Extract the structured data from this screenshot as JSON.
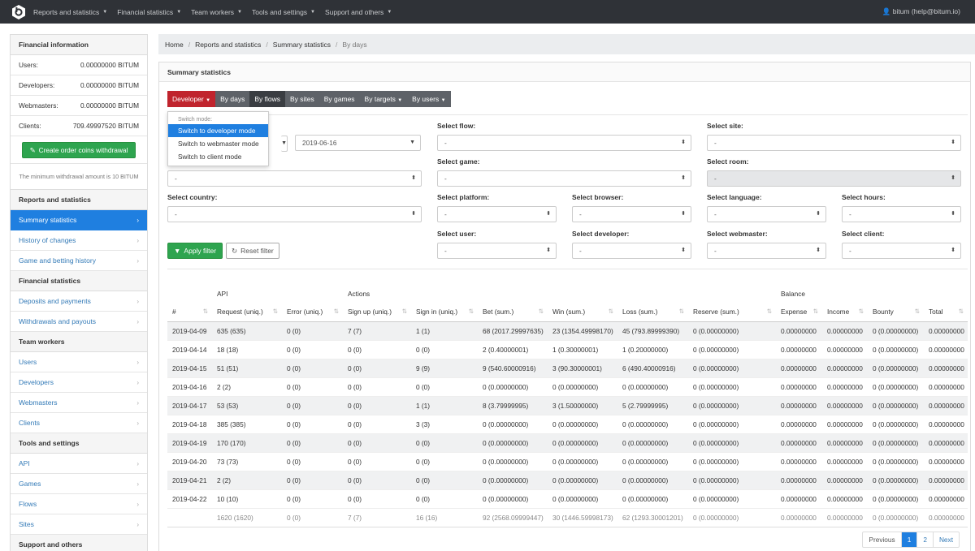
{
  "nav": {
    "items": [
      "Reports and statistics",
      "Financial statistics",
      "Team workers",
      "Tools and settings",
      "Support and others"
    ],
    "user": "bitum (help@bitum.io)"
  },
  "sidebar": {
    "fin_title": "Financial information",
    "balances": [
      {
        "label": "Users:",
        "value": "0.00000000 BITUM"
      },
      {
        "label": "Developers:",
        "value": "0.00000000 BITUM"
      },
      {
        "label": "Webmasters:",
        "value": "0.00000000 BITUM"
      },
      {
        "label": "Clients:",
        "value": "709.49997520 BITUM"
      }
    ],
    "withdraw_button": "Create order coins withdrawal",
    "min_note": "The minimum withdrawal amount is 10 BITUM",
    "sections": [
      {
        "title": "Reports and statistics",
        "links": [
          "Summary statistics",
          "History of changes",
          "Game and betting history"
        ]
      },
      {
        "title": "Financial statistics",
        "links": [
          "Deposits and payments",
          "Withdrawals and payouts"
        ]
      },
      {
        "title": "Team workers",
        "links": [
          "Users",
          "Developers",
          "Webmasters",
          "Clients"
        ]
      },
      {
        "title": "Tools and settings",
        "links": [
          "API",
          "Games",
          "Flows",
          "Sites"
        ]
      },
      {
        "title": "Support and others",
        "links": []
      }
    ],
    "active_link": "Summary statistics"
  },
  "breadcrumb": [
    "Home",
    "Reports and statistics",
    "Summary statistics",
    "By days"
  ],
  "panel_title": "Summary statistics",
  "tabs": {
    "mode": "Developer",
    "items": [
      "By days",
      "By flows",
      "By sites",
      "By games",
      "By targets",
      "By users"
    ],
    "active": "By days"
  },
  "dropdown": {
    "header": "Switch mode:",
    "items": [
      "Switch to developer mode",
      "Switch to webmaster mode",
      "Switch to client mode"
    ]
  },
  "filters": {
    "date_to": "2019-06-16",
    "labels": {
      "flow": "Select flow:",
      "site": "Select site:",
      "game": "Select game:",
      "room": "Select room:",
      "country": "Select country:",
      "platform": "Select platform:",
      "browser": "Select browser:",
      "language": "Select language:",
      "hours": "Select hours:",
      "user": "Select user:",
      "developer": "Select developer:",
      "webmaster": "Select webmaster:",
      "client": "Select client:"
    },
    "empty": "-"
  },
  "apply_button": "Apply filter",
  "reset_button": "Reset filter",
  "table": {
    "groups": {
      "api": "API",
      "actions": "Actions",
      "balance": "Balance"
    },
    "columns": [
      "#",
      "Request (uniq.)",
      "Error (uniq.)",
      "Sign up (uniq.)",
      "Sign in (uniq.)",
      "Bet (sum.)",
      "Win (sum.)",
      "Loss (sum.)",
      "Reserve (sum.)",
      "Expense",
      "Income",
      "Bounty",
      "Total"
    ],
    "rows": [
      [
        "2019-04-09",
        "635 (635)",
        "0 (0)",
        "7 (7)",
        "1 (1)",
        "68 (2017.29997635)",
        "23 (1354.49998170)",
        "45 (793.89999390)",
        "0 (0.00000000)",
        "0.00000000",
        "0.00000000",
        "0 (0.00000000)",
        "0.00000000"
      ],
      [
        "2019-04-14",
        "18 (18)",
        "0 (0)",
        "0 (0)",
        "0 (0)",
        "2 (0.40000001)",
        "1 (0.30000001)",
        "1 (0.20000000)",
        "0 (0.00000000)",
        "0.00000000",
        "0.00000000",
        "0 (0.00000000)",
        "0.00000000"
      ],
      [
        "2019-04-15",
        "51 (51)",
        "0 (0)",
        "0 (0)",
        "9 (9)",
        "9 (540.60000916)",
        "3 (90.30000001)",
        "6 (490.40000916)",
        "0 (0.00000000)",
        "0.00000000",
        "0.00000000",
        "0 (0.00000000)",
        "0.00000000"
      ],
      [
        "2019-04-16",
        "2 (2)",
        "0 (0)",
        "0 (0)",
        "0 (0)",
        "0 (0.00000000)",
        "0 (0.00000000)",
        "0 (0.00000000)",
        "0 (0.00000000)",
        "0.00000000",
        "0.00000000",
        "0 (0.00000000)",
        "0.00000000"
      ],
      [
        "2019-04-17",
        "53 (53)",
        "0 (0)",
        "0 (0)",
        "1 (1)",
        "8 (3.79999995)",
        "3 (1.50000000)",
        "5 (2.79999995)",
        "0 (0.00000000)",
        "0.00000000",
        "0.00000000",
        "0 (0.00000000)",
        "0.00000000"
      ],
      [
        "2019-04-18",
        "385 (385)",
        "0 (0)",
        "0 (0)",
        "3 (3)",
        "0 (0.00000000)",
        "0 (0.00000000)",
        "0 (0.00000000)",
        "0 (0.00000000)",
        "0.00000000",
        "0.00000000",
        "0 (0.00000000)",
        "0.00000000"
      ],
      [
        "2019-04-19",
        "170 (170)",
        "0 (0)",
        "0 (0)",
        "0 (0)",
        "0 (0.00000000)",
        "0 (0.00000000)",
        "0 (0.00000000)",
        "0 (0.00000000)",
        "0.00000000",
        "0.00000000",
        "0 (0.00000000)",
        "0.00000000"
      ],
      [
        "2019-04-20",
        "73 (73)",
        "0 (0)",
        "0 (0)",
        "0 (0)",
        "0 (0.00000000)",
        "0 (0.00000000)",
        "0 (0.00000000)",
        "0 (0.00000000)",
        "0.00000000",
        "0.00000000",
        "0 (0.00000000)",
        "0.00000000"
      ],
      [
        "2019-04-21",
        "2 (2)",
        "0 (0)",
        "0 (0)",
        "0 (0)",
        "0 (0.00000000)",
        "0 (0.00000000)",
        "0 (0.00000000)",
        "0 (0.00000000)",
        "0.00000000",
        "0.00000000",
        "0 (0.00000000)",
        "0.00000000"
      ],
      [
        "2019-04-22",
        "10 (10)",
        "0 (0)",
        "0 (0)",
        "0 (0)",
        "0 (0.00000000)",
        "0 (0.00000000)",
        "0 (0.00000000)",
        "0 (0.00000000)",
        "0.00000000",
        "0.00000000",
        "0 (0.00000000)",
        "0.00000000"
      ]
    ],
    "totals": [
      "",
      "1620 (1620)",
      "0 (0)",
      "7 (7)",
      "16 (16)",
      "92 (2568.09999447)",
      "30 (1446.59998173)",
      "62 (1293.30001201)",
      "0 (0.00000000)",
      "0.00000000",
      "0.00000000",
      "0 (0.00000000)",
      "0.00000000"
    ]
  },
  "pagination": [
    "Previous",
    "1",
    "2",
    "Next"
  ]
}
